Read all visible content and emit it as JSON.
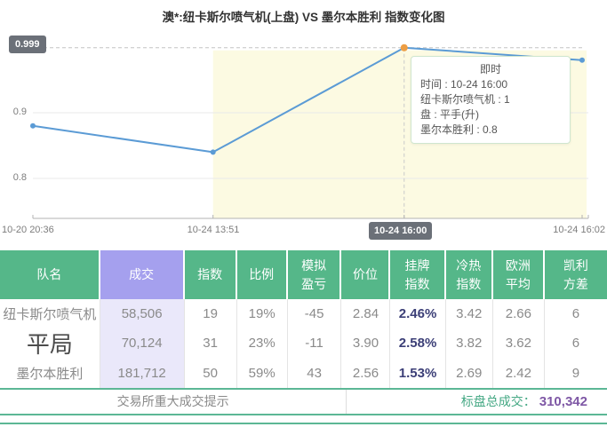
{
  "title": "澳*:纽卡斯尔喷气机(上盘) VS 墨尔本胜利 指数变化图",
  "colors": {
    "accent_green": "#55b789",
    "accent_purple": "#a5a0ee",
    "line_blue": "#5b9bd5",
    "highlight_orange": "#ed9e44",
    "navy_value": "#3c3f77",
    "total_value_purple": "#7e57a5"
  },
  "chart_data": {
    "type": "line",
    "title": "指数变化图",
    "series_name": "纽卡斯尔喷气机(上盘) 指数",
    "points": [
      {
        "time": "10-20 20:36",
        "value": 0.88,
        "x_frac": 0
      },
      {
        "time": "10-24 13:51",
        "value": 0.84,
        "x_frac": 0.328
      },
      {
        "time": "10-24 16:00",
        "value": 0.999,
        "x_frac": 0.676
      },
      {
        "time": "10-24 16:02",
        "value": 0.98,
        "x_frac": 1
      }
    ],
    "selected_index": 2,
    "band_start_index": 1,
    "y_ticks": [
      0.9,
      0.8
    ],
    "max_label": "0.999",
    "selected_x_label": "10-24 16:00",
    "ylim": [
      0.74,
      1.01
    ],
    "grid": true,
    "line_color": "#5b9bd5",
    "highlight_color": "#ed9e44",
    "band_color": "#fcfae2"
  },
  "tooltip": {
    "title": "即时",
    "lines": [
      "时间 : 10-24 16:00",
      "纽卡斯尔喷气机 : 1",
      "盘 : 平手(升)",
      "墨尔本胜利 : 0.8"
    ]
  },
  "table": {
    "headers": [
      {
        "key": "team",
        "lines": [
          "队名"
        ]
      },
      {
        "key": "volume",
        "accent": true,
        "lines": [
          "成交"
        ]
      },
      {
        "key": "index",
        "lines": [
          "指数"
        ]
      },
      {
        "key": "ratio",
        "lines": [
          "比例"
        ]
      },
      {
        "key": "sim-pnl",
        "lines": [
          "模拟",
          "盈亏"
        ]
      },
      {
        "key": "price",
        "lines": [
          "价位"
        ]
      },
      {
        "key": "listed-index",
        "lines": [
          "挂牌",
          "指数"
        ]
      },
      {
        "key": "hot-cold-index",
        "lines": [
          "冷热",
          "指数"
        ]
      },
      {
        "key": "euro-avg",
        "lines": [
          "欧洲",
          "平均"
        ]
      },
      {
        "key": "kelly-var",
        "lines": [
          "凯利",
          "方差"
        ]
      }
    ],
    "rows": [
      {
        "key": "home",
        "name": "纽卡斯尔喷气机",
        "large": false,
        "values": [
          "58,506",
          "19",
          "19%",
          "-45",
          "2.84",
          "2.46%",
          "3.42",
          "2.66",
          "6"
        ]
      },
      {
        "key": "draw",
        "name": "平局",
        "large": true,
        "values": [
          "70,124",
          "31",
          "23%",
          "-11",
          "3.90",
          "2.58%",
          "3.82",
          "3.62",
          "6"
        ]
      },
      {
        "key": "away",
        "name": "墨尔本胜利",
        "large": false,
        "values": [
          "181,712",
          "50",
          "59%",
          "43",
          "2.56",
          "1.53%",
          "2.69",
          "2.42",
          "9"
        ]
      }
    ],
    "footer": {
      "left": "交易所重大成交提示",
      "right_label": "标盘总成交：",
      "right_value": "310,342"
    }
  }
}
